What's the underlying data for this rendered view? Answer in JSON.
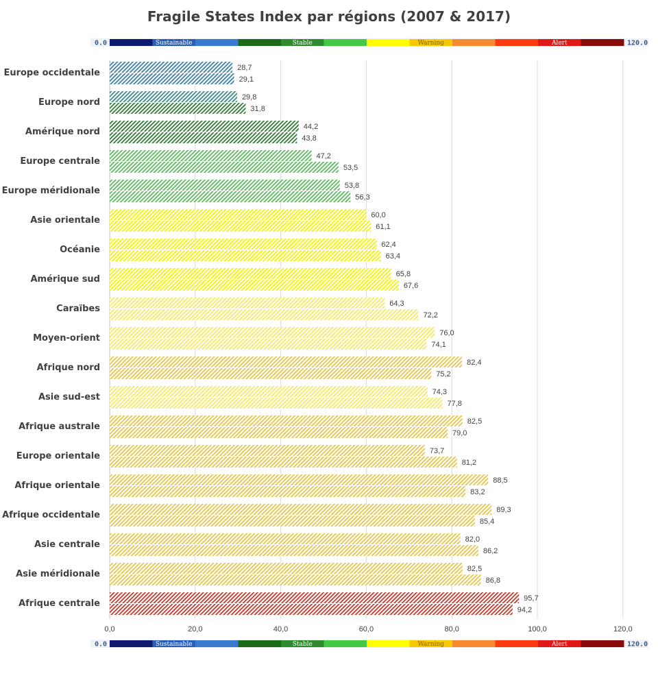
{
  "chart_data": {
    "type": "bar",
    "orientation": "horizontal",
    "title": "Fragile States Index par régions (2007 & 2017)",
    "xlim": [
      0,
      120
    ],
    "x_ticks": [
      "0,0",
      "20,0",
      "40,0",
      "60,0",
      "80,0",
      "100,0",
      "120,0"
    ],
    "grid": true,
    "categories": [
      "Europe occidentale",
      "Europe nord",
      "Amérique nord",
      "Europe centrale",
      "Europe méridionale",
      "Asie orientale",
      "Océanie",
      "Amérique sud",
      "Caraïbes",
      "Moyen-orient",
      "Afrique nord",
      "Asie sud-est",
      "Afrique australe",
      "Europe orientale",
      "Afrique orientale",
      "Afrique occidentale",
      "Asie centrale",
      "Asie méridionale",
      "Afrique centrale"
    ],
    "series": [
      {
        "name": "2007",
        "values": [
          28.7,
          29.8,
          44.2,
          47.2,
          53.8,
          60.0,
          62.4,
          65.8,
          64.3,
          76.0,
          82.4,
          74.3,
          82.5,
          73.7,
          88.5,
          89.3,
          82.0,
          82.5,
          95.7
        ],
        "labels": [
          "28,7",
          "29,8",
          "44,2",
          "47,2",
          "53,8",
          "60,0",
          "62,4",
          "65,8",
          "64,3",
          "76,0",
          "82,4",
          "74,3",
          "82,5",
          "73,7",
          "88,5",
          "89,3",
          "82,0",
          "82,5",
          "95,7"
        ]
      },
      {
        "name": "2017",
        "values": [
          29.1,
          31.8,
          43.8,
          53.5,
          56.3,
          61.1,
          63.4,
          67.6,
          72.2,
          74.1,
          75.2,
          77.8,
          79.0,
          81.2,
          83.2,
          85.4,
          86.2,
          86.8,
          94.2
        ],
        "labels": [
          "29,1",
          "31,8",
          "43,8",
          "53,5",
          "56,3",
          "61,1",
          "63,4",
          "67,6",
          "72,2",
          "74,1",
          "75,2",
          "77,8",
          "79,0",
          "81,2",
          "83,2",
          "85,4",
          "86,2",
          "86,8",
          "94,2"
        ]
      }
    ]
  },
  "scale_legend": {
    "min_label": "0.0",
    "max_label": "120.0",
    "segments": [
      {
        "color": "#0d1a70",
        "label": ""
      },
      {
        "color": "#2a5fb8",
        "label": "Sustainable"
      },
      {
        "color": "#3a7ad0",
        "label": ""
      },
      {
        "color": "#1a6a1a",
        "label": ""
      },
      {
        "color": "#2e8b2e",
        "label": "Stable"
      },
      {
        "color": "#45c845",
        "label": ""
      },
      {
        "color": "#ffff00",
        "label": ""
      },
      {
        "color": "#f5c800",
        "label": "Warning"
      },
      {
        "color": "#f58a30",
        "label": ""
      },
      {
        "color": "#ff3a10",
        "label": ""
      },
      {
        "color": "#e01818",
        "label": "Alert"
      },
      {
        "color": "#8a0a0a",
        "label": ""
      }
    ]
  },
  "colors": {
    "blue_stripe": "#3d7fa6",
    "teal_stripe": "#3a8a8a",
    "dark_green_stripe": "#2f7a34",
    "green_stripe": "#45a045",
    "light_green_stripe": "#5cb85c",
    "yellow_stripe": "#f2f200",
    "light_yellow_stripe": "#f5e860",
    "gold_stripe": "#e5c44a",
    "orange_stripe": "#e0a040",
    "red_stripe": "#c0392b",
    "grid": "#d9d9d9",
    "text": "#404040"
  }
}
